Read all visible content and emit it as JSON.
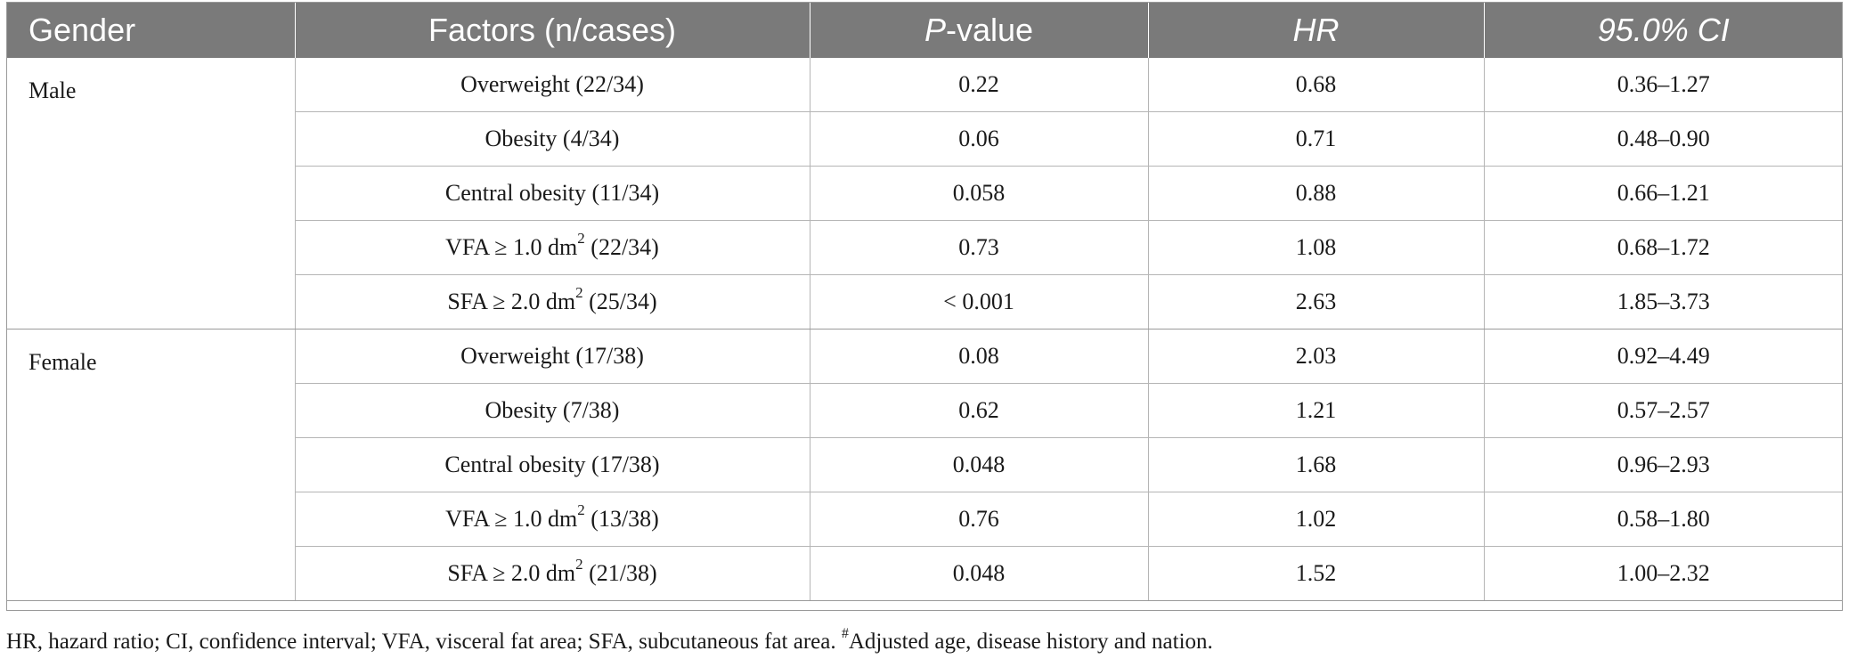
{
  "header": {
    "gender": "Gender",
    "factors": "Factors (n/cases)",
    "p_italic": "P",
    "p_rest": "-value",
    "hr": "HR",
    "ci": "95.0% CI"
  },
  "groups": [
    {
      "gender": "Male",
      "rows": [
        {
          "pre": "Overweight (22/34)",
          "sup": "",
          "post": "",
          "p": "0.22",
          "hr": "0.68",
          "ci": "0.36–1.27"
        },
        {
          "pre": "Obesity (4/34)",
          "sup": "",
          "post": "",
          "p": "0.06",
          "hr": "0.71",
          "ci": "0.48–0.90"
        },
        {
          "pre": "Central obesity (11/34)",
          "sup": "",
          "post": "",
          "p": "0.058",
          "hr": "0.88",
          "ci": "0.66–1.21"
        },
        {
          "pre": "VFA ≥ 1.0 dm",
          "sup": "2",
          "post": " (22/34)",
          "p": "0.73",
          "hr": "1.08",
          "ci": "0.68–1.72"
        },
        {
          "pre": "SFA ≥ 2.0 dm",
          "sup": "2",
          "post": " (25/34)",
          "p": "< 0.001",
          "hr": "2.63",
          "ci": "1.85–3.73"
        }
      ]
    },
    {
      "gender": "Female",
      "rows": [
        {
          "pre": "Overweight (17/38)",
          "sup": "",
          "post": "",
          "p": "0.08",
          "hr": "2.03",
          "ci": "0.92–4.49"
        },
        {
          "pre": "Obesity (7/38)",
          "sup": "",
          "post": "",
          "p": "0.62",
          "hr": "1.21",
          "ci": "0.57–2.57"
        },
        {
          "pre": "Central obesity (17/38)",
          "sup": "",
          "post": "",
          "p": "0.048",
          "hr": "1.68",
          "ci": "0.96–2.93"
        },
        {
          "pre": "VFA ≥ 1.0 dm",
          "sup": "2",
          "post": " (13/38)",
          "p": "0.76",
          "hr": "1.02",
          "ci": "0.58–1.80"
        },
        {
          "pre": "SFA ≥ 2.0 dm",
          "sup": "2",
          "post": " (21/38)",
          "p": "0.048",
          "hr": "1.52",
          "ci": "1.00–2.32"
        }
      ]
    }
  ],
  "footnote": {
    "text": "HR, hazard ratio; CI, confidence interval; VFA, visceral fat area; SFA, subcutaneous fat area. ",
    "mark": "#",
    "rest": "Adjusted age, disease history and nation."
  },
  "colors": {
    "header_bg": "#7a7a7a",
    "header_text": "#ffffff",
    "rule": "#b5b5b5"
  }
}
